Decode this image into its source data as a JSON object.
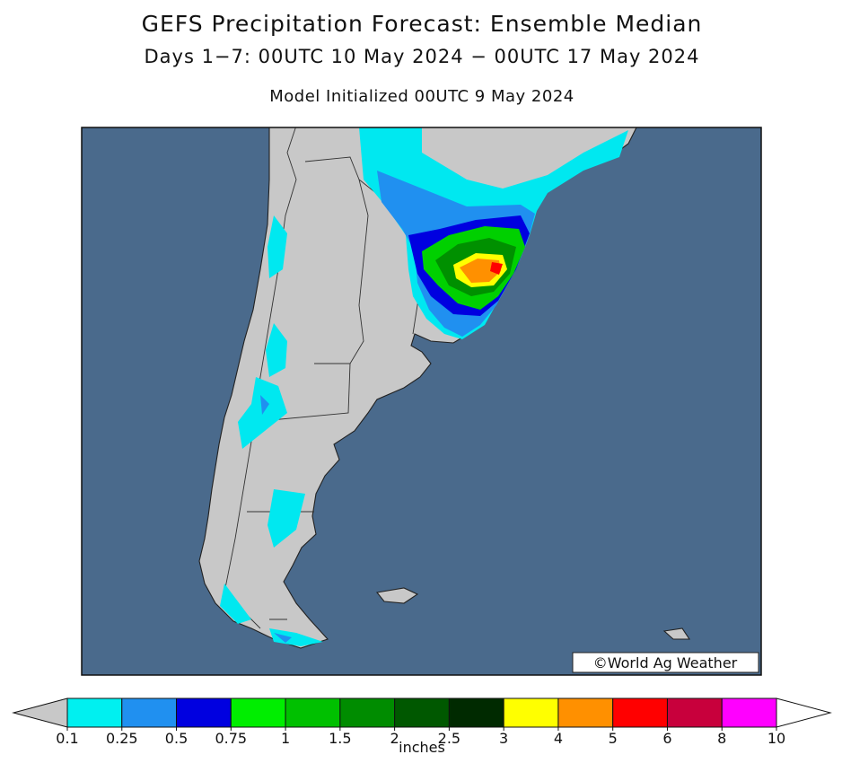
{
  "header": {
    "title": "GEFS Precipitation Forecast: Ensemble Median",
    "subtitle": "Days 1−7: 00UTC 10 May 2024 − 00UTC 17 May 2024",
    "initialized": "Model Initialized 00UTC 9 May 2024"
  },
  "map": {
    "credit": "©World Ag Weather"
  },
  "colorbar": {
    "ticks": [
      0.1,
      0.25,
      0.5,
      0.75,
      1,
      1.5,
      2,
      2.5,
      3,
      4,
      5,
      6,
      8,
      10
    ],
    "colors": [
      "#00f0f0",
      "#2090f0",
      "#0000e0",
      "#00ee00",
      "#00c000",
      "#008c00",
      "#005800",
      "#002a00",
      "#ffff00",
      "#ff9000",
      "#ff0000",
      "#c8003c",
      "#ff00ff",
      "#a050d0"
    ],
    "under_color": "#c8c8c8",
    "over_color": "#ffffff",
    "unit": "inches"
  }
}
